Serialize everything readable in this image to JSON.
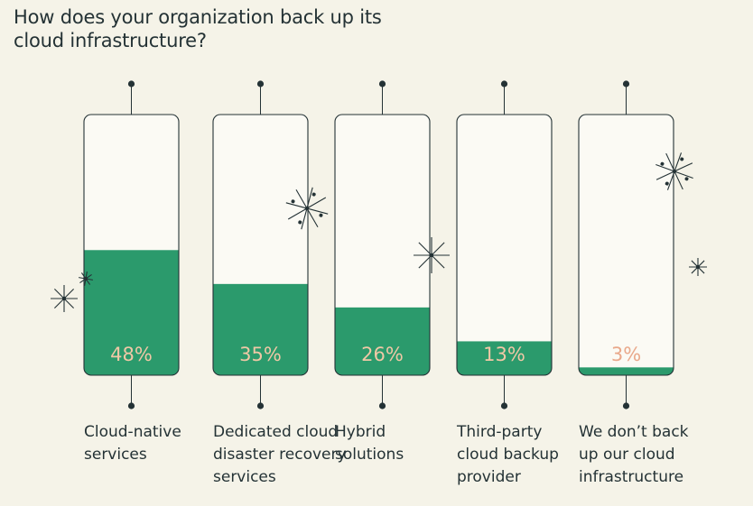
{
  "colors": {
    "background": "#f5f3e8",
    "bar_fill": "#2b9a6c",
    "bar_empty": "#fbfaf4",
    "outline": "#243235",
    "value_text": "#f0c8a6",
    "value_text_dark": "#e9a88a"
  },
  "chart_data": {
    "type": "bar",
    "title": "How does your organization back up its cloud infrastructure?",
    "categories": [
      "Cloud-native services",
      "Dedicated cloud disaster recovery services",
      "Hybrid solutions",
      "Third-party cloud backup provider",
      "We don’t back up our cloud infrastructure"
    ],
    "values": [
      48,
      35,
      26,
      13,
      3
    ],
    "value_labels": [
      "48%",
      "35%",
      "26%",
      "13%",
      "3%"
    ],
    "ylim": [
      0,
      100
    ],
    "grid": false,
    "legend": "none"
  }
}
